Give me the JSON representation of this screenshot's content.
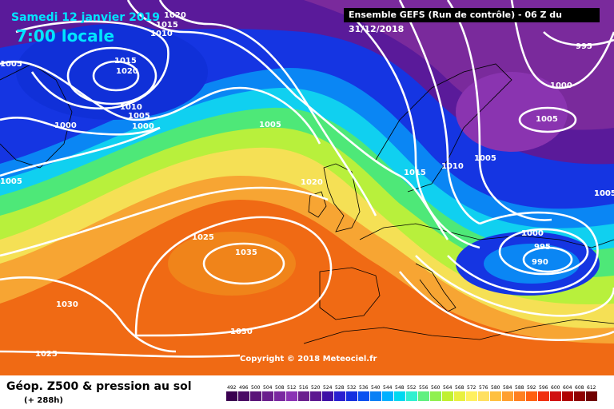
{
  "header": {
    "date": "Samedi 12 janvier 2019",
    "time": "7:00 locale",
    "run": "Ensemble GEFS  (Run de contrôle)  -  06 Z du 31/12/2018"
  },
  "footer": {
    "title": "Géop. Z500 & pression au sol",
    "subtitle": "(+ 288h)",
    "copyright": "Copyright © 2018 Meteociel.fr"
  },
  "isobar_labels": [
    "1020",
    "1015",
    "1010",
    "1005",
    "1015",
    "1020",
    "1010",
    "1005",
    "1000",
    "1000",
    "1005",
    "1020",
    "1015",
    "1010",
    "1005",
    "1000",
    "995",
    "1005",
    "1000",
    "1005",
    "1025",
    "1035",
    "1030",
    "1030",
    "1025",
    "1000",
    "995",
    "990",
    "1005",
    "1005"
  ],
  "legend": {
    "values": [
      "492",
      "496",
      "500",
      "504",
      "508",
      "512",
      "516",
      "520",
      "524",
      "528",
      "532",
      "536",
      "540",
      "544",
      "548",
      "552",
      "556",
      "560",
      "564",
      "568",
      "572",
      "576",
      "580",
      "584",
      "588",
      "592",
      "596",
      "600",
      "604",
      "608",
      "612"
    ],
    "colors": [
      "#3a0050",
      "#4a0a64",
      "#5a1478",
      "#6a1e8c",
      "#7a28a0",
      "#8a32b4",
      "#6b1f8e",
      "#5c1890",
      "#3f0fa6",
      "#2a1fd0",
      "#1530e0",
      "#0a50f0",
      "#0a80f5",
      "#00b0ff",
      "#00d8f0",
      "#30f0d0",
      "#60f080",
      "#90f050",
      "#c0f030",
      "#e8f040",
      "#fff060",
      "#ffe060",
      "#ffc040",
      "#ffa030",
      "#ff8020",
      "#ff6010",
      "#f03010",
      "#d01010",
      "#b00000",
      "#900000",
      "#700000"
    ]
  }
}
